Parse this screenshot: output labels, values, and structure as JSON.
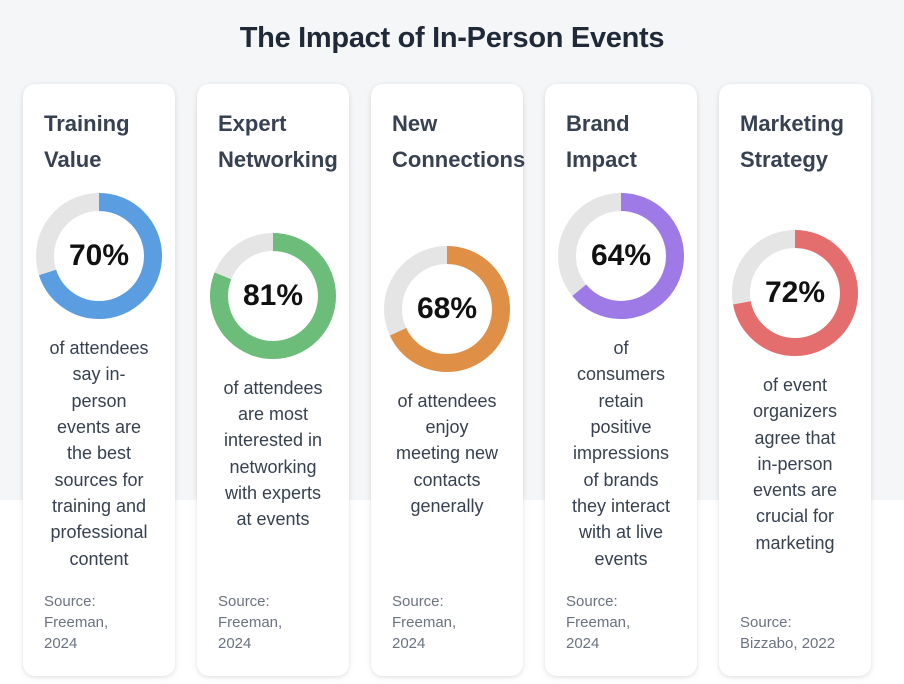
{
  "page": {
    "title": "The Impact of In-Person Events"
  },
  "chart_data": {
    "type": "donut",
    "title": "The Impact of In-Person Events",
    "colors": {
      "track": "#e5e5e5"
    },
    "cards": [
      {
        "title_lines": [
          "Training",
          "Value"
        ],
        "value": 70,
        "value_label": "70%",
        "color": "#5a9de0",
        "description_lines": [
          "of attendees",
          "say in-",
          "person",
          "events are",
          "the best",
          "sources for",
          "training and",
          "professional",
          "content"
        ],
        "source_lines": [
          "Source:",
          "Freeman,",
          "2024"
        ]
      },
      {
        "title_lines": [
          "Expert",
          "Networking"
        ],
        "value": 81,
        "value_label": "81%",
        "color": "#6cbd7a",
        "description_lines": [
          "of attendees",
          "are most",
          "interested in",
          "networking",
          "with experts",
          "at events"
        ],
        "source_lines": [
          "Source:",
          "Freeman,",
          "2024"
        ]
      },
      {
        "title_lines": [
          "New",
          "Connections"
        ],
        "value": 68,
        "value_label": "68%",
        "color": "#e08f46",
        "description_lines": [
          "of attendees",
          "enjoy",
          "meeting new",
          "contacts",
          "generally"
        ],
        "source_lines": [
          "Source:",
          "Freeman,",
          "2024"
        ]
      },
      {
        "title_lines": [
          "Brand",
          "Impact"
        ],
        "value": 64,
        "value_label": "64%",
        "color": "#9d7ae6",
        "description_lines": [
          "of",
          "consumers",
          "retain",
          "positive",
          "impressions",
          "of brands",
          "they interact",
          "with at live",
          "events"
        ],
        "source_lines": [
          "Source:",
          "Freeman,",
          "2024"
        ]
      },
      {
        "title_lines": [
          "Marketing",
          "Strategy"
        ],
        "value": 72,
        "value_label": "72%",
        "color": "#e46d6d",
        "description_lines": [
          "of event",
          "organizers",
          "agree that",
          "in-person",
          "events are",
          "crucial for",
          "marketing"
        ],
        "source_lines": [
          "Source:",
          "Bizzabo, 2022"
        ]
      }
    ]
  }
}
